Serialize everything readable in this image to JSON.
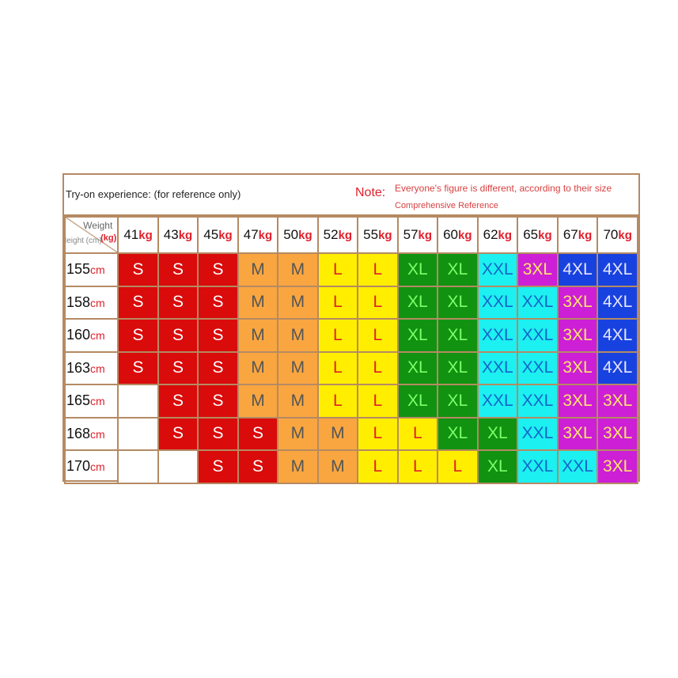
{
  "header": {
    "tryon": "Try-on experience: (for reference only)",
    "note_label": "Note:",
    "note_text": "Everyone's figure is different, according to their size",
    "note_sub": "Comprehensive Reference"
  },
  "corner": {
    "weight_label": "Weight",
    "weight_unit": "(kg)",
    "height_label": "Height (cm)"
  },
  "weights": [
    {
      "value": "41",
      "unit": "kg"
    },
    {
      "value": "43",
      "unit": "kg"
    },
    {
      "value": "45",
      "unit": "kg"
    },
    {
      "value": "47",
      "unit": "kg"
    },
    {
      "value": "50",
      "unit": "kg"
    },
    {
      "value": "52",
      "unit": "kg"
    },
    {
      "value": "55",
      "unit": "kg"
    },
    {
      "value": "57",
      "unit": "kg"
    },
    {
      "value": "60",
      "unit": "kg"
    },
    {
      "value": "62",
      "unit": "kg"
    },
    {
      "value": "65",
      "unit": "kg"
    },
    {
      "value": "67",
      "unit": "kg"
    },
    {
      "value": "70",
      "unit": "kg"
    }
  ],
  "size_colors": {
    "S": {
      "bg": "#d90b0b",
      "fg": "#ffffff"
    },
    "M": {
      "bg": "#f9a640",
      "fg": "#555555"
    },
    "L": {
      "bg": "#ffee00",
      "fg": "#e0202a"
    },
    "XL": {
      "bg": "#119311",
      "fg": "#7dff6a"
    },
    "XXL": {
      "bg": "#1cf0f0",
      "fg": "#1466c8"
    },
    "3XL": {
      "bg": "#cc1fd6",
      "fg": "#ffe66a"
    },
    "4XL": {
      "bg": "#1842e0",
      "fg": "#e6e6ff"
    },
    "": {
      "bg": "#ffffff",
      "fg": "#ffffff"
    }
  },
  "rows": [
    {
      "height": "155",
      "unit": "cm",
      "sizes": [
        "S",
        "S",
        "S",
        "M",
        "M",
        "L",
        "L",
        "XL",
        "XL",
        "XXL",
        "3XL",
        "4XL",
        "4XL"
      ]
    },
    {
      "height": "158",
      "unit": "cm",
      "sizes": [
        "S",
        "S",
        "S",
        "M",
        "M",
        "L",
        "L",
        "XL",
        "XL",
        "XXL",
        "XXL",
        "3XL",
        "4XL"
      ]
    },
    {
      "height": "160",
      "unit": "cm",
      "sizes": [
        "S",
        "S",
        "S",
        "M",
        "M",
        "L",
        "L",
        "XL",
        "XL",
        "XXL",
        "XXL",
        "3XL",
        "4XL"
      ]
    },
    {
      "height": "163",
      "unit": "cm",
      "sizes": [
        "S",
        "S",
        "S",
        "M",
        "M",
        "L",
        "L",
        "XL",
        "XL",
        "XXL",
        "XXL",
        "3XL",
        "4XL"
      ]
    },
    {
      "height": "165",
      "unit": "cm",
      "sizes": [
        "",
        "S",
        "S",
        "M",
        "M",
        "L",
        "L",
        "XL",
        "XL",
        "XXL",
        "XXL",
        "3XL",
        "3XL"
      ]
    },
    {
      "height": "168",
      "unit": "cm",
      "sizes": [
        "",
        "S",
        "S",
        "S",
        "M",
        "M",
        "L",
        "L",
        "XL",
        "XL",
        "XXL",
        "3XL",
        "3XL"
      ]
    },
    {
      "height": "170",
      "unit": "cm",
      "sizes": [
        "",
        "",
        "S",
        "S",
        "M",
        "M",
        "L",
        "L",
        "L",
        "XL",
        "XXL",
        "XXL",
        "3XL"
      ]
    }
  ]
}
